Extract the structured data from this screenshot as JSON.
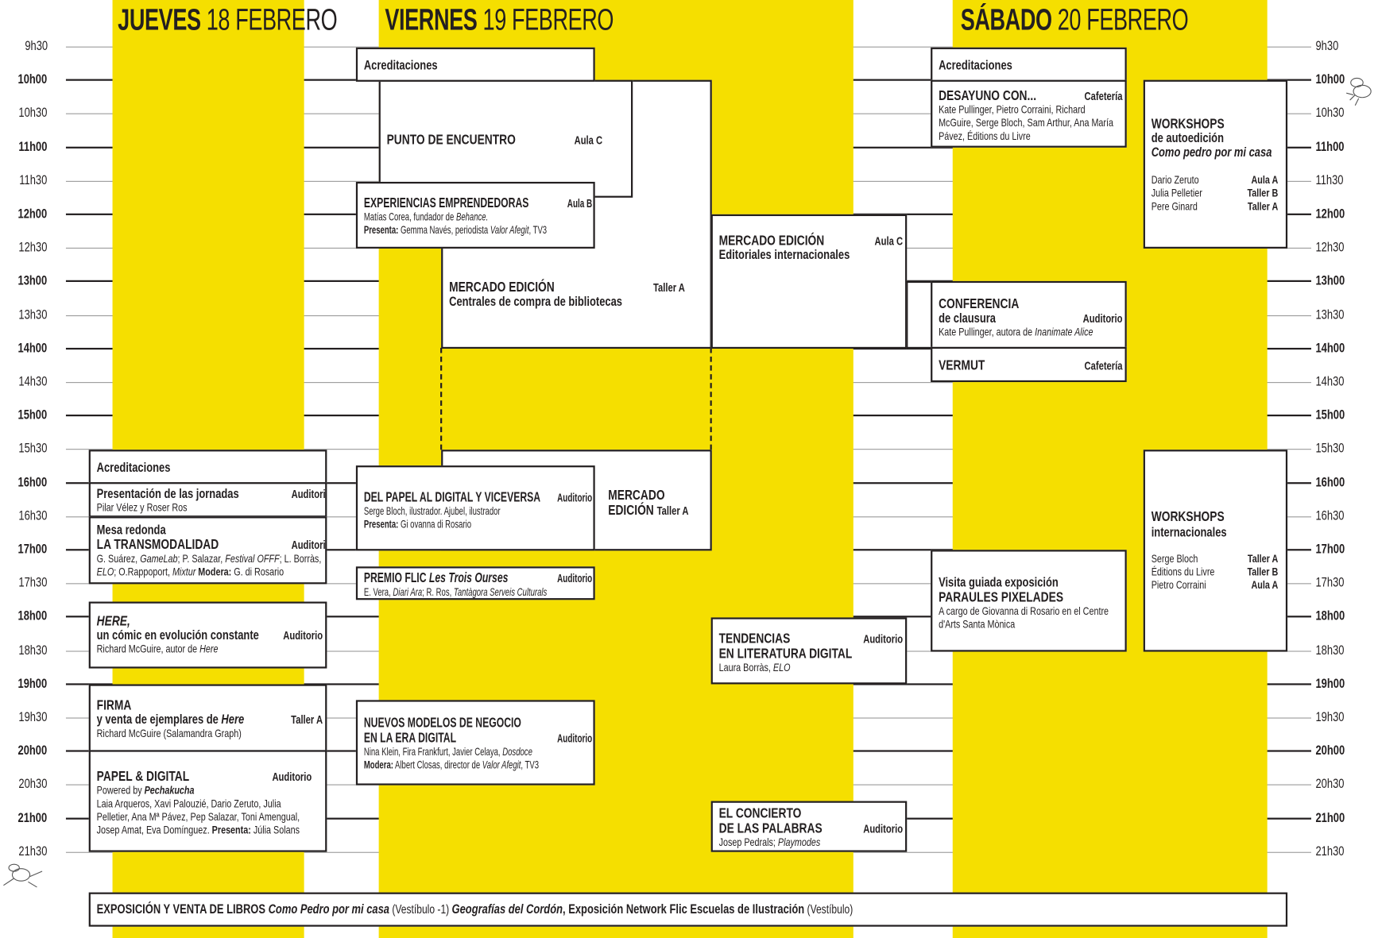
{
  "days": [
    {
      "bold": "JUEVES",
      "rest": " 18 FEBRERO"
    },
    {
      "bold": "VIERNES",
      "rest": " 19 FEBRERO"
    },
    {
      "bold": "SÁBADO",
      "rest": " 20 FEBRERO"
    }
  ],
  "times": [
    "9h30",
    "10h00",
    "10h30",
    "11h00",
    "11h30",
    "12h00",
    "12h30",
    "13h00",
    "13h30",
    "14h00",
    "14h30",
    "15h00",
    "15h30",
    "16h00",
    "16h30",
    "17h00",
    "17h30",
    "18h00",
    "18h30",
    "19h00",
    "19h30",
    "20h00",
    "20h30",
    "21h00",
    "21h30"
  ],
  "colors": {
    "yellow": "#f5df00",
    "ink": "#231f20"
  },
  "jueves": {
    "acred": {
      "title": "Acreditaciones"
    },
    "present": {
      "title": "Presentación de las jornadas",
      "room": "Auditorio",
      "d1": "Pilar Vélez y Roser Ros"
    },
    "mesa": {
      "pre": "Mesa redonda",
      "title": "LA TRANSMODALIDAD",
      "room": "Auditorio",
      "a": "G. Suárez, ",
      "b": "GameLab",
      "c": "; P. Salazar, ",
      "d": "Festival OFFF",
      "e": "; L. Borràs,",
      "f": "ELO",
      "g": "; O.Rappoport, ",
      "h": "Mixtur",
      "i": " Modera:",
      "j": " G. di Rosario"
    },
    "here": {
      "title": "HERE,",
      "sub": "un cómic en evolución constante",
      "room": "Auditorio",
      "d1": "Richard McGuire, autor de ",
      "d2": "Here"
    },
    "firma": {
      "title": "FIRMA",
      "sub": "y venta de ejemplares de ",
      "sub_i": "Here",
      "room": "Taller A",
      "d1": "Richard McGuire (Salamandra Graph)"
    },
    "papel": {
      "title": "PAPEL & DIGITAL",
      "room": "Auditorio",
      "p1": "Powered by ",
      "p2": "Pechakucha",
      "d1": "Laia Arqueros, Xavi Palouzié, Dario Zeruto, Julia Pelletier, Ana Mª Pávez, Pep Salazar, Toni Amengual, Josep Amat, Eva Domínguez. ",
      "d2": "Presenta:",
      "d3": " Júlia Solans"
    }
  },
  "viernes": {
    "acred": {
      "title": "Acreditaciones"
    },
    "punto": {
      "title": "PUNTO DE ENCUENTRO",
      "room": "Aula C"
    },
    "exper": {
      "title": "EXPERIENCIAS EMPRENDEDORAS",
      "room": "Aula B",
      "d1": "Matías Corea, fundador de ",
      "d2": "Behance.",
      "p1": "Presenta:",
      "p2": " Gemma Navés, periodista ",
      "p3": "Valor Afegit",
      "p4": ", TV3"
    },
    "merc1": {
      "title": "MERCADO EDICIÓN",
      "sub": "Centrales de compra de bibliotecas",
      "room": "Taller A"
    },
    "merc2": {
      "title": "MERCADO EDICIÓN",
      "sub": "Editoriales internacionales",
      "room": "Aula C"
    },
    "delpapel": {
      "title": "DEL PAPEL AL DIGITAL Y VICEVERSA",
      "room": "Auditorio",
      "d1": "Serge Bloch, ilustrador. Ajubel, ilustrador",
      "p1": "Presenta:",
      "p2": " Gi ovanna di Rosario"
    },
    "merc3": {
      "t1": "MERCADO",
      "t2": "EDICIÓN",
      "room": "Taller A"
    },
    "premio": {
      "title": "PREMIO FLIC ",
      "title_i": "Les Trois Ourses",
      "room": "Auditorio",
      "a": "E. Vera, ",
      "b": "Diari Ara",
      "c": "; R. Ros, ",
      "d": "Tantàgora Serveis Culturals"
    },
    "tend": {
      "t1": "TENDENCIAS",
      "t2": "EN LITERATURA DIGITAL",
      "room": "Auditorio",
      "d1": "Laura Borràs, ",
      "d2": "ELO"
    },
    "nuevos": {
      "t1": "NUEVOS MODELOS DE NEGOCIO",
      "t2": "EN LA ERA DIGITAL",
      "room": "Auditorio",
      "d1": "Nina Klein, Fira Frankfurt, Javier Celaya, ",
      "d2": "Dosdoce",
      "m1": "Modera:",
      "m2": " Albert Closas, director de ",
      "m3": "Valor Afegit",
      "m4": ", TV3"
    },
    "concierto": {
      "t1": "EL CONCIERTO",
      "t2": "DE LAS PALABRAS",
      "room": "Auditorio",
      "d1": "Josep Pedrals; ",
      "d2": "Playmodes"
    }
  },
  "sabado": {
    "acred": {
      "title": "Acreditaciones"
    },
    "desayuno": {
      "title": "DESAYUNO CON...",
      "room": "Cafetería",
      "d1": "Kate Pullinger, Pietro Corraini, Richard McGuire, Serge Bloch, Sam Arthur, Ana María Pávez, Éditions du Livre"
    },
    "conf": {
      "title": "CONFERENCIA",
      "sub": "de clausura",
      "room": "Auditorio",
      "d1": "Kate Pullinger, autora de ",
      "d2": "Inanimate Alice"
    },
    "vermut": {
      "title": "VERMUT",
      "room": "Cafetería"
    },
    "visita": {
      "sub": "Visita guiada exposición",
      "title": "PARAULES PIXELADES",
      "d1": "A cargo de Giovanna di Rosario en el Centre d'Arts Santa Mònica"
    },
    "ws1": {
      "title": "WORKSHOPS",
      "sub": "de autoedición",
      "sub2": "Como pedro por mi casa",
      "rows": [
        {
          "name": "Dario Zeruto",
          "room": "Aula A"
        },
        {
          "name": "Julia Pelletier",
          "room": "Taller B"
        },
        {
          "name": "Pere Ginard",
          "room": "Taller A"
        }
      ]
    },
    "ws2": {
      "title": "WORKSHOPS",
      "sub": "internacionales",
      "rows": [
        {
          "name": "Serge Bloch",
          "room": "Taller A"
        },
        {
          "name": "Éditions du Livre",
          "room": "Taller B"
        },
        {
          "name": "Pietro Corraini",
          "room": "Aula A"
        }
      ]
    }
  },
  "footer": {
    "a": "EXPOSICIÓN Y VENTA DE LIBROS ",
    "b": "Como Pedro por mi casa",
    "c": " (Vestíbulo -1) ",
    "d": "Geografías del Cordón",
    "e": ", Exposición Network Flic Escuelas de Ilustración",
    "f": " (Vestíbulo)"
  }
}
